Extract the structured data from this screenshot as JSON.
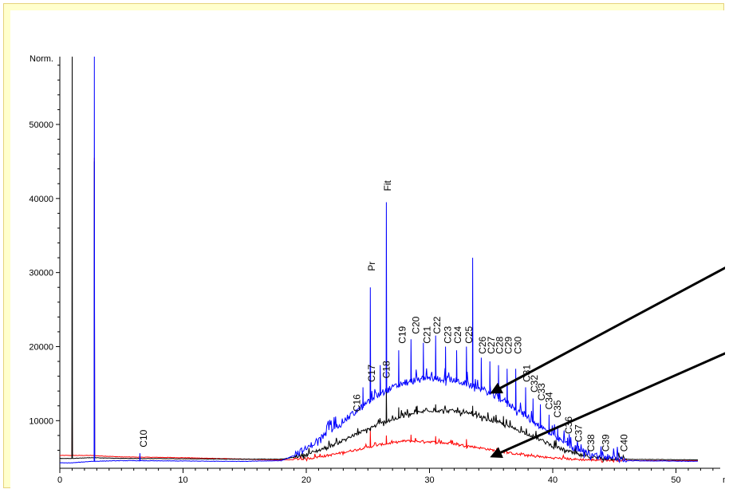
{
  "chart_data": {
    "type": "line",
    "title": "",
    "xlabel": "m",
    "ylabel": "Norm.",
    "xlim": [
      0,
      54
    ],
    "ylim": [
      4000,
      60000
    ],
    "x_ticks": [
      0,
      10,
      20,
      30,
      40,
      50
    ],
    "y_ticks": [
      10000,
      20000,
      30000,
      40000,
      50000
    ],
    "grid": false,
    "legend": "none",
    "series": [
      {
        "color": "#0000ff",
        "baseline": [
          [
            0,
            4300
          ],
          [
            1,
            4300
          ],
          [
            2.5,
            4500
          ],
          [
            5,
            4600
          ],
          [
            10,
            4550
          ],
          [
            15,
            4500
          ],
          [
            18,
            4600
          ],
          [
            20,
            6000
          ],
          [
            22,
            8500
          ],
          [
            24,
            11000
          ],
          [
            26,
            13500
          ],
          [
            28,
            15000
          ],
          [
            30,
            15600
          ],
          [
            32,
            15300
          ],
          [
            34,
            14300
          ],
          [
            36,
            12600
          ],
          [
            38,
            10300
          ],
          [
            40,
            7800
          ],
          [
            42,
            5900
          ],
          [
            44,
            4900
          ],
          [
            46,
            4600
          ],
          [
            52,
            4500
          ]
        ],
        "peaks": [
          [
            2.8,
            60000
          ],
          [
            6.5,
            5600
          ],
          [
            24.0,
            11200
          ],
          [
            24.6,
            14500
          ],
          [
            25.2,
            28000
          ],
          [
            26.0,
            17500
          ],
          [
            26.5,
            39500
          ],
          [
            27.5,
            19500
          ],
          [
            28.5,
            21000
          ],
          [
            29.5,
            20500
          ],
          [
            30.5,
            21500
          ],
          [
            31.3,
            20000
          ],
          [
            32.2,
            19500
          ],
          [
            33.0,
            20000
          ],
          [
            33.5,
            32000
          ],
          [
            34.2,
            18500
          ],
          [
            34.9,
            18000
          ],
          [
            35.6,
            17500
          ],
          [
            36.3,
            17000
          ],
          [
            37.0,
            17000
          ],
          [
            37.8,
            14500
          ],
          [
            38.4,
            13000
          ],
          [
            39.0,
            12200
          ],
          [
            39.7,
            10800
          ],
          [
            40.4,
            9300
          ],
          [
            41.2,
            7700
          ],
          [
            42.1,
            6600
          ],
          [
            43.2,
            5600
          ],
          [
            44.5,
            5100
          ]
        ]
      },
      {
        "color": "#000000",
        "baseline": [
          [
            0,
            4900
          ],
          [
            1,
            4900
          ],
          [
            2.5,
            5000
          ],
          [
            5,
            4900
          ],
          [
            10,
            4850
          ],
          [
            15,
            4800
          ],
          [
            18,
            4800
          ],
          [
            20,
            5300
          ],
          [
            22,
            6500
          ],
          [
            24,
            8000
          ],
          [
            26,
            9500
          ],
          [
            28,
            10600
          ],
          [
            30,
            11300
          ],
          [
            32,
            11200
          ],
          [
            34,
            10500
          ],
          [
            36,
            9400
          ],
          [
            38,
            8100
          ],
          [
            40,
            6500
          ],
          [
            42,
            5300
          ],
          [
            44,
            4800
          ],
          [
            52,
            4700
          ]
        ],
        "peaks": [
          [
            1.0,
            60000
          ],
          [
            2.8,
            45000
          ],
          [
            25.2,
            8600
          ],
          [
            26.5,
            14500
          ],
          [
            27.5,
            11800
          ],
          [
            29,
            12000
          ],
          [
            30.5,
            12200
          ],
          [
            33.5,
            12000
          ],
          [
            36.0,
            10600
          ]
        ]
      },
      {
        "color": "#ff0000",
        "baseline": [
          [
            0,
            5300
          ],
          [
            1,
            5300
          ],
          [
            2.5,
            5300
          ],
          [
            5,
            5100
          ],
          [
            10,
            5000
          ],
          [
            15,
            4800
          ],
          [
            18,
            4700
          ],
          [
            20,
            4800
          ],
          [
            22,
            5300
          ],
          [
            24,
            6000
          ],
          [
            26,
            6700
          ],
          [
            28,
            7200
          ],
          [
            30,
            7100
          ],
          [
            32,
            6800
          ],
          [
            34,
            6300
          ],
          [
            36,
            5700
          ],
          [
            38,
            5200
          ],
          [
            40,
            4900
          ],
          [
            42,
            4700
          ],
          [
            44,
            4600
          ],
          [
            52,
            4600
          ]
        ],
        "peaks": [
          [
            1.0,
            10200
          ],
          [
            2.8,
            45500
          ],
          [
            25.2,
            8600
          ],
          [
            26.5,
            8000
          ],
          [
            28.5,
            8100
          ],
          [
            30.5,
            7900
          ],
          [
            33,
            7500
          ]
        ]
      }
    ],
    "annotations": [
      {
        "label": "C10",
        "x": 6.8,
        "y": 6400
      },
      {
        "label": "C16",
        "x": 24.1,
        "y": 11200
      },
      {
        "label": "C17",
        "x": 25.3,
        "y": 15200
      },
      {
        "label": "Pr",
        "x": 25.3,
        "y": 30200
      },
      {
        "label": "C18",
        "x": 26.5,
        "y": 15700
      },
      {
        "label": "Fit",
        "x": 26.6,
        "y": 41000
      },
      {
        "label": "C19",
        "x": 27.8,
        "y": 20400
      },
      {
        "label": "C20",
        "x": 28.9,
        "y": 21700
      },
      {
        "label": "C21",
        "x": 29.8,
        "y": 20400
      },
      {
        "label": "C22",
        "x": 30.6,
        "y": 21700
      },
      {
        "label": "C23",
        "x": 31.5,
        "y": 20400
      },
      {
        "label": "C24",
        "x": 32.3,
        "y": 20400
      },
      {
        "label": "C25",
        "x": 33.2,
        "y": 20400
      },
      {
        "label": "C26",
        "x": 34.3,
        "y": 19000
      },
      {
        "label": "C27",
        "x": 35.0,
        "y": 19000
      },
      {
        "label": "C28",
        "x": 35.7,
        "y": 19000
      },
      {
        "label": "C29",
        "x": 36.4,
        "y": 19000
      },
      {
        "label": "C30",
        "x": 37.2,
        "y": 19000
      },
      {
        "label": "C31",
        "x": 37.9,
        "y": 15200
      },
      {
        "label": "C32",
        "x": 38.5,
        "y": 13800
      },
      {
        "label": "C33",
        "x": 39.1,
        "y": 12700
      },
      {
        "label": "C34",
        "x": 39.7,
        "y": 11500
      },
      {
        "label": "C35",
        "x": 40.4,
        "y": 10400
      },
      {
        "label": "C36",
        "x": 41.3,
        "y": 8200
      },
      {
        "label": "C37",
        "x": 42.1,
        "y": 7100
      },
      {
        "label": "C38",
        "x": 43.1,
        "y": 5800
      },
      {
        "label": "C39",
        "x": 44.3,
        "y": 5800
      },
      {
        "label": "C40",
        "x": 45.8,
        "y": 5800
      }
    ]
  }
}
